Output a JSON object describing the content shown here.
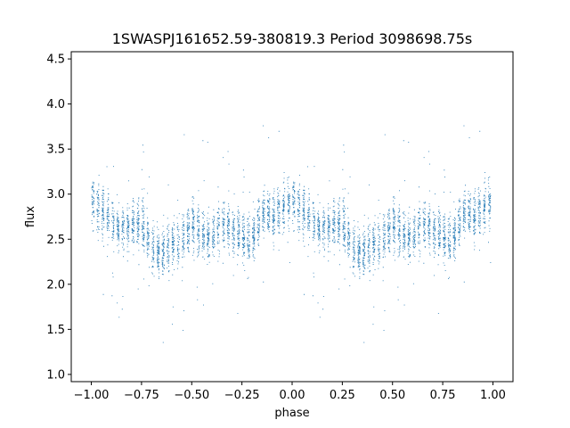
{
  "chart_data": {
    "type": "scatter",
    "title": "1SWASPJ161652.59-380819.3 Period 3098698.75s",
    "xlabel": "phase",
    "ylabel": "flux",
    "xlim": [
      -1.1,
      1.1
    ],
    "ylim": [
      0.92,
      4.58
    ],
    "x_ticks": [
      -1.0,
      -0.75,
      -0.5,
      -0.25,
      0.0,
      0.25,
      0.5,
      0.75,
      1.0
    ],
    "x_tick_labels": [
      "−1.00",
      "−0.75",
      "−0.50",
      "−0.25",
      "0.00",
      "0.25",
      "0.50",
      "0.75",
      "1.00"
    ],
    "y_ticks": [
      1.0,
      1.5,
      2.0,
      2.5,
      3.0,
      3.5,
      4.0,
      4.5
    ],
    "y_tick_labels": [
      "1.0",
      "1.5",
      "2.0",
      "2.5",
      "3.0",
      "3.5",
      "4.0",
      "4.5"
    ],
    "grid": false,
    "marker_color": "#1f77b4",
    "series": [
      {
        "phase_range": [
          -1.0,
          1.0
        ],
        "mirrored_period": 1.0,
        "profile": [
          {
            "x": 0.0,
            "y": 2.95
          },
          {
            "x": 0.05,
            "y": 2.85
          },
          {
            "x": 0.1,
            "y": 2.7
          },
          {
            "x": 0.15,
            "y": 2.6
          },
          {
            "x": 0.2,
            "y": 2.65
          },
          {
            "x": 0.25,
            "y": 2.7
          },
          {
            "x": 0.3,
            "y": 2.4
          },
          {
            "x": 0.35,
            "y": 2.35
          },
          {
            "x": 0.4,
            "y": 2.45
          },
          {
            "x": 0.45,
            "y": 2.5
          },
          {
            "x": 0.5,
            "y": 2.65
          },
          {
            "x": 0.55,
            "y": 2.55
          },
          {
            "x": 0.6,
            "y": 2.5
          },
          {
            "x": 0.65,
            "y": 2.7
          },
          {
            "x": 0.7,
            "y": 2.6
          },
          {
            "x": 0.75,
            "y": 2.55
          },
          {
            "x": 0.8,
            "y": 2.5
          },
          {
            "x": 0.85,
            "y": 2.8
          },
          {
            "x": 0.9,
            "y": 2.75
          },
          {
            "x": 0.95,
            "y": 2.85
          },
          {
            "x": 1.0,
            "y": 2.95
          }
        ]
      }
    ]
  }
}
